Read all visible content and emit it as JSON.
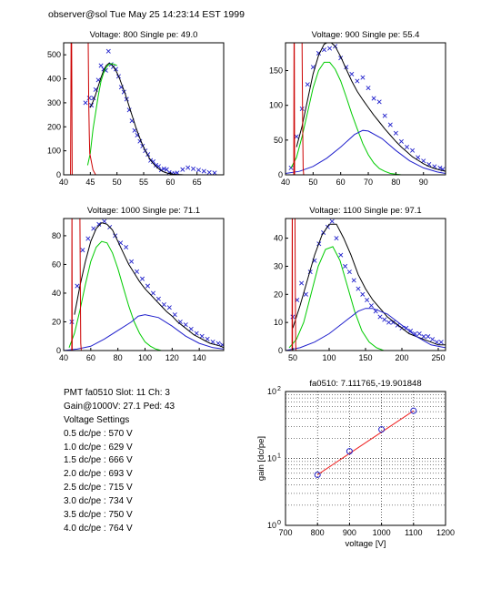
{
  "header": "observer@sol  Tue May 25 14:23:14 EST 1999",
  "colors": {
    "data": "#2222cc",
    "fit_total": "#000000",
    "fit_pe": "#00cc00",
    "fit_second": "#1f1fcc",
    "pedestal": "#cc0000",
    "gain_fit": "#ee2222"
  },
  "info": {
    "line1": "PMT fa0510 Slot: 11 Ch: 3",
    "line2": "Gain@1000V: 27.1 Ped: 43",
    "line3": "Voltage Settings",
    "settings": [
      "0.5 dc/pe : 570 V",
      "1.0 dc/pe : 629 V",
      "1.5 dc/pe : 666 V",
      "2.0 dc/pe : 693 V",
      "2.5 dc/pe : 715 V",
      "3.0 dc/pe : 734 V",
      "3.5 dc/pe : 750 V",
      "4.0 dc/pe : 764 V"
    ]
  },
  "chart_data": [
    {
      "type": "scatter",
      "title": "Voltage: 800 Single pe: 49.0",
      "xlim": [
        40,
        70
      ],
      "ylim": [
        0,
        550
      ],
      "xticks": [
        40,
        45,
        50,
        55,
        60,
        65
      ],
      "yticks": [
        0,
        100,
        200,
        300,
        400,
        500
      ],
      "series": [
        {
          "role": "data",
          "x": [
            44.1,
            44.8,
            45.2,
            45.6,
            46.0,
            46.5,
            47.0,
            47.5,
            47.9,
            48.4,
            48.9,
            49.3,
            49.8,
            50.3,
            50.8,
            51.3,
            51.8,
            52.3,
            52.8,
            53.3,
            53.8,
            54.3,
            54.8,
            55.3,
            55.8,
            56.3,
            56.8,
            57.3,
            57.8,
            58.3,
            58.8,
            59.3,
            59.8,
            60.3,
            60.8,
            61.3,
            62.3,
            63.3,
            64.3,
            65.3,
            66.3,
            67.3,
            68.3
          ],
          "y": [
            300,
            320,
            290,
            320,
            355,
            395,
            455,
            440,
            435,
            515,
            460,
            450,
            440,
            410,
            365,
            345,
            315,
            270,
            225,
            185,
            165,
            140,
            120,
            100,
            85,
            60,
            55,
            40,
            35,
            20,
            25,
            22,
            10,
            5,
            5,
            8,
            22,
            30,
            25,
            20,
            15,
            10,
            8
          ]
        },
        {
          "role": "fit_total",
          "x": [
            45.0,
            45.5,
            46.0,
            46.5,
            47.0,
            47.5,
            48.0,
            48.5,
            49.0,
            49.5,
            50.0,
            50.5,
            51.0,
            51.5,
            52.0,
            52.5,
            53.0,
            53.5,
            54.0,
            54.5,
            55.0,
            55.5,
            56.0,
            56.5,
            57.0,
            57.5,
            58.0,
            58.5,
            59.0,
            59.5,
            60.0,
            60.5,
            61.0,
            61.5,
            62.0,
            62.5,
            63.0
          ],
          "y": [
            280,
            305,
            335,
            370,
            405,
            435,
            455,
            465,
            460,
            445,
            425,
            400,
            370,
            340,
            305,
            270,
            235,
            200,
            170,
            140,
            115,
            92,
            72,
            55,
            42,
            31,
            22,
            15,
            10,
            7,
            5,
            3,
            2,
            1,
            1,
            0,
            0
          ]
        },
        {
          "role": "fit_pe",
          "x": [
            44.5,
            45.0,
            45.5,
            46.0,
            46.5,
            47.0,
            47.5,
            48.0,
            48.5,
            49.0,
            49.5,
            50.0
          ],
          "y": [
            40,
            90,
            190,
            260,
            330,
            390,
            425,
            448,
            460,
            463,
            460,
            455
          ]
        },
        {
          "role": "pedestal",
          "x": [
            41.3,
            41.4,
            41.5,
            41.6
          ],
          "y": [
            0,
            550,
            550,
            0
          ]
        },
        {
          "role": "pedestal",
          "x": [
            44.6,
            44.7,
            44.8,
            44.9,
            45.5,
            46.0
          ],
          "y": [
            550,
            300,
            170,
            90,
            20,
            0
          ]
        }
      ]
    },
    {
      "type": "scatter",
      "title": "Voltage: 900 Single pe: 55.4",
      "xlim": [
        40,
        98
      ],
      "ylim": [
        0,
        190
      ],
      "xticks": [
        40,
        50,
        60,
        70,
        80,
        90
      ],
      "yticks": [
        0,
        50,
        100,
        150
      ],
      "series": [
        {
          "role": "data",
          "x": [
            42,
            44,
            46,
            48,
            50,
            52,
            54,
            56,
            58,
            60,
            62,
            64,
            66,
            68,
            70,
            72,
            74,
            76,
            78,
            80,
            82,
            84,
            86,
            88,
            90,
            92,
            94,
            96,
            97
          ],
          "y": [
            10,
            55,
            95,
            130,
            155,
            175,
            180,
            182,
            185,
            168,
            155,
            145,
            135,
            140,
            125,
            110,
            105,
            85,
            72,
            60,
            48,
            40,
            35,
            25,
            20,
            15,
            12,
            10,
            8
          ]
        },
        {
          "role": "fit_total",
          "x": [
            44,
            46,
            48,
            50,
            52,
            54,
            56,
            58,
            60,
            62,
            64,
            66,
            68,
            70,
            72,
            74,
            76,
            78,
            80,
            82,
            84,
            86,
            88,
            90,
            92,
            94,
            96,
            98
          ],
          "y": [
            40,
            70,
            108,
            145,
            172,
            188,
            192,
            185,
            170,
            152,
            135,
            120,
            108,
            97,
            86,
            76,
            66,
            57,
            48,
            40,
            33,
            26,
            21,
            16,
            12,
            9,
            7,
            5
          ]
        },
        {
          "role": "fit_pe",
          "x": [
            42,
            44,
            46,
            48,
            50,
            52,
            54,
            56,
            58,
            60,
            62,
            64,
            66,
            68,
            70,
            72,
            74,
            76,
            78,
            80,
            82,
            84
          ],
          "y": [
            10,
            25,
            55,
            90,
            125,
            150,
            162,
            162,
            152,
            135,
            112,
            88,
            66,
            45,
            29,
            17,
            9,
            5,
            2,
            1,
            0,
            0
          ]
        },
        {
          "role": "fit_second",
          "x": [
            40,
            45,
            50,
            55,
            60,
            65,
            68,
            70,
            75,
            80,
            85,
            90,
            95,
            98
          ],
          "y": [
            2,
            5,
            12,
            24,
            40,
            58,
            64,
            63,
            52,
            35,
            20,
            10,
            4,
            2
          ]
        },
        {
          "role": "pedestal",
          "x": [
            43.0,
            43.1,
            43.2,
            43.3
          ],
          "y": [
            0,
            190,
            190,
            0
          ]
        },
        {
          "role": "pedestal",
          "x": [
            46.0,
            46.2,
            46.4,
            46.6
          ],
          "y": [
            190,
            80,
            10,
            0
          ]
        }
      ]
    },
    {
      "type": "scatter",
      "title": "Voltage: 1000 Single pe: 71.1",
      "xlim": [
        40,
        158
      ],
      "ylim": [
        0,
        92
      ],
      "xticks": [
        40,
        60,
        80,
        100,
        120,
        140
      ],
      "yticks": [
        0,
        20,
        40,
        60,
        80
      ],
      "series": [
        {
          "role": "data",
          "x": [
            46,
            50,
            54,
            58,
            62,
            66,
            70,
            74,
            78,
            82,
            86,
            90,
            94,
            98,
            102,
            106,
            110,
            114,
            118,
            122,
            126,
            130,
            134,
            138,
            142,
            146,
            150,
            154,
            157
          ],
          "y": [
            20,
            45,
            70,
            78,
            85,
            88,
            90,
            86,
            80,
            75,
            72,
            62,
            55,
            50,
            45,
            40,
            36,
            32,
            30,
            25,
            20,
            18,
            15,
            12,
            10,
            8,
            6,
            5,
            4
          ]
        },
        {
          "role": "fit_total",
          "x": [
            48,
            52,
            56,
            60,
            64,
            68,
            72,
            76,
            80,
            84,
            88,
            92,
            96,
            100,
            104,
            108,
            112,
            116,
            120,
            124,
            128,
            132,
            136,
            140,
            144,
            148,
            152,
            156,
            158
          ],
          "y": [
            25,
            45,
            62,
            76,
            85,
            89,
            88,
            84,
            76,
            68,
            60,
            54,
            48,
            43,
            39,
            35,
            31,
            27,
            24,
            20,
            17,
            14,
            11,
            9,
            7,
            5,
            4,
            3,
            2
          ]
        },
        {
          "role": "fit_pe",
          "x": [
            44,
            48,
            52,
            56,
            60,
            64,
            68,
            72,
            76,
            80,
            84,
            88,
            92,
            96,
            100,
            104,
            108,
            112,
            116
          ],
          "y": [
            2,
            12,
            28,
            46,
            62,
            72,
            76,
            75,
            68,
            57,
            44,
            31,
            20,
            12,
            6,
            3,
            1,
            0,
            0
          ]
        },
        {
          "role": "fit_second",
          "x": [
            40,
            50,
            60,
            70,
            80,
            90,
            95,
            100,
            110,
            120,
            130,
            140,
            150,
            158
          ],
          "y": [
            0,
            1,
            3,
            8,
            14,
            20,
            24,
            25,
            23,
            17,
            10,
            5,
            2,
            1
          ]
        },
        {
          "role": "pedestal",
          "x": [
            46.0,
            46.1,
            46.2,
            46.3
          ],
          "y": [
            0,
            92,
            92,
            0
          ]
        },
        {
          "role": "pedestal",
          "x": [
            52.0,
            52.3,
            52.6,
            53.0
          ],
          "y": [
            92,
            50,
            5,
            0
          ]
        }
      ]
    },
    {
      "type": "scatter",
      "title": "Voltage: 1100 Single pe: 97.1",
      "xlim": [
        40,
        260
      ],
      "ylim": [
        0,
        47
      ],
      "xticks": [
        50,
        100,
        150,
        200,
        250
      ],
      "yticks": [
        0,
        10,
        20,
        30,
        40
      ],
      "series": [
        {
          "role": "data",
          "x": [
            50,
            56,
            62,
            68,
            74,
            80,
            86,
            92,
            98,
            104,
            110,
            116,
            122,
            128,
            134,
            140,
            146,
            152,
            158,
            164,
            170,
            176,
            182,
            188,
            194,
            200,
            206,
            212,
            218,
            224,
            230,
            236,
            242,
            248,
            254
          ],
          "y": [
            12,
            18,
            24,
            20,
            28,
            32,
            38,
            42,
            44,
            46,
            40,
            34,
            30,
            28,
            25,
            22,
            20,
            18,
            16,
            14,
            12,
            11,
            10,
            10,
            9,
            8,
            8,
            7,
            6,
            6,
            5,
            5,
            4,
            3,
            3
          ]
        },
        {
          "role": "fit_total",
          "x": [
            50,
            60,
            70,
            80,
            90,
            100,
            110,
            120,
            130,
            140,
            150,
            160,
            170,
            180,
            190,
            200,
            210,
            220,
            230,
            240,
            250,
            260
          ],
          "y": [
            8,
            16,
            25,
            34,
            41,
            45,
            45,
            40,
            34,
            27,
            22,
            18,
            15,
            12,
            10,
            8,
            6,
            5,
            4,
            3,
            2,
            2
          ]
        },
        {
          "role": "fit_pe",
          "x": [
            45,
            55,
            65,
            75,
            85,
            95,
            105,
            115,
            125,
            135,
            145,
            155,
            165,
            175
          ],
          "y": [
            1,
            4,
            10,
            20,
            30,
            36,
            37,
            32,
            23,
            14,
            7,
            3,
            1,
            0
          ]
        },
        {
          "role": "fit_second",
          "x": [
            40,
            60,
            80,
            100,
            120,
            140,
            150,
            160,
            180,
            200,
            220,
            240,
            260
          ],
          "y": [
            0,
            1,
            3,
            6,
            10,
            14,
            15,
            15,
            13,
            9,
            5,
            2,
            1
          ]
        },
        {
          "role": "pedestal",
          "x": [
            49.0,
            49.2,
            49.4,
            49.6
          ],
          "y": [
            0,
            47,
            47,
            0
          ]
        },
        {
          "role": "pedestal",
          "x": [
            53.0,
            53.5,
            54.0,
            54.5
          ],
          "y": [
            47,
            20,
            2,
            0
          ]
        }
      ]
    },
    {
      "type": "scatter",
      "title": "fa0510: 7.111765,-19.901848",
      "xlabel": "voltage [V]",
      "ylabel": "gain [dc/pe]",
      "xlim": [
        700,
        1200
      ],
      "ylim": [
        1,
        100
      ],
      "yscale": "log",
      "grid": true,
      "xticks": [
        700,
        800,
        900,
        1000,
        1100,
        1200
      ],
      "yticks": [
        "10^0",
        "10^1",
        "10^2"
      ],
      "points": {
        "x": [
          800,
          900,
          1000,
          1100
        ],
        "y": [
          5.7,
          12.8,
          27.1,
          51.5
        ]
      },
      "fit_line": {
        "x": [
          800,
          1100
        ],
        "y": [
          5.7,
          51.5
        ]
      }
    }
  ]
}
